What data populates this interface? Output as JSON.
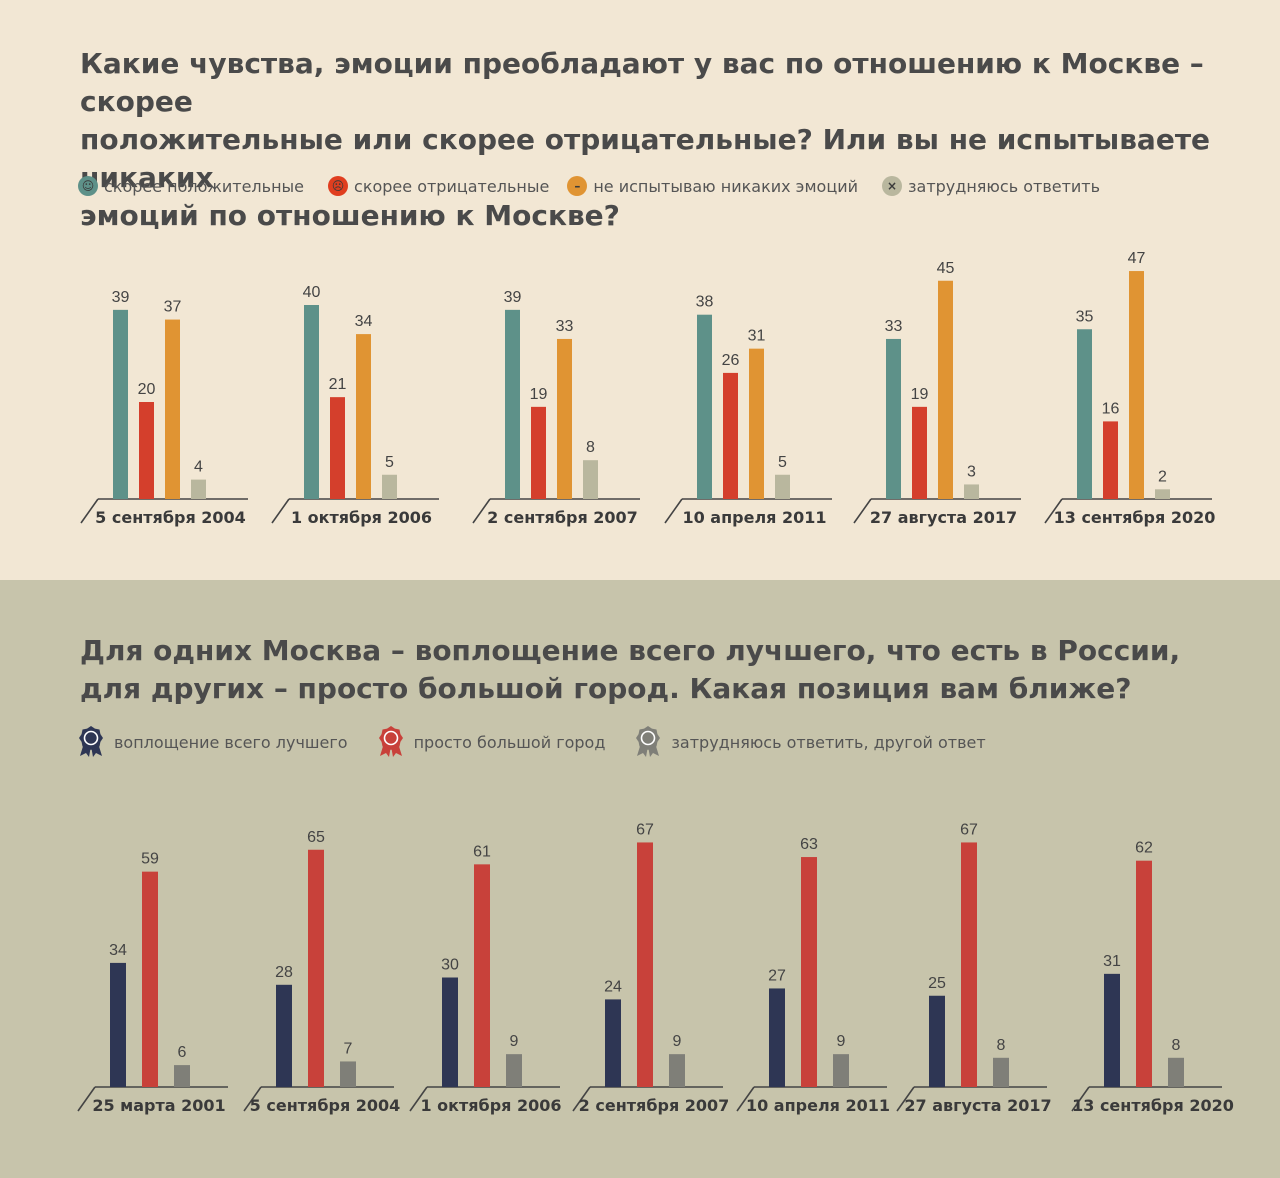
{
  "section1": {
    "title": "Какие чувства, эмоции преобладают у вас по отношению к Москве – скорее\nположительные или скорее отрицательные? Или вы не испытываете никаких\nэмоций по отношению к Москве?",
    "legend": [
      {
        "label": "скорее положительные",
        "icon": "smile-icon",
        "glyph": "☺",
        "color": "#5e9189"
      },
      {
        "label": "скорее отрицательные",
        "icon": "angry-face-icon",
        "glyph": "☹",
        "color": "#e03e1f"
      },
      {
        "label": "не испытываю никаких эмоций",
        "icon": "neutral-face-icon",
        "glyph": "–",
        "color": "#e09433"
      },
      {
        "label": "затрудняюсь ответить",
        "icon": "confused-face-icon",
        "glyph": "×",
        "color": "#b9b79e"
      }
    ]
  },
  "section2": {
    "title": "Для одних Москва – воплощение всего лучшего, что есть в России,\nдля других –  просто большой город. Какая позиция вам ближе?",
    "legend": [
      {
        "label": "воплощение всего лучшего",
        "icon": "rosette-icon",
        "color": "#2e3654"
      },
      {
        "label": "просто большой город",
        "icon": "rosette-icon",
        "color": "#c8413a"
      },
      {
        "label": "затрудняюсь ответить, другой ответ",
        "icon": "rosette-icon",
        "color": "#7f7f78"
      }
    ]
  },
  "chart_data": [
    {
      "type": "bar",
      "categories": [
        "5 сентября 2004",
        "1 октября 2006",
        "2 сентября 2007",
        "10 апреля 2011",
        "27 августа 2017",
        "13 сентября 2020"
      ],
      "series": [
        {
          "name": "скорее положительные",
          "values": [
            39,
            40,
            39,
            38,
            33,
            35
          ],
          "color": "#5e9189"
        },
        {
          "name": "скорее отрицательные",
          "values": [
            20,
            21,
            19,
            26,
            19,
            16
          ],
          "color": "#d43f2c"
        },
        {
          "name": "не испытываю никаких эмоций",
          "values": [
            37,
            34,
            33,
            31,
            45,
            47
          ],
          "color": "#e09433"
        },
        {
          "name": "затрудняюсь ответить",
          "values": [
            4,
            5,
            8,
            5,
            3,
            2
          ],
          "color": "#b9b79e"
        }
      ]
    },
    {
      "type": "bar",
      "categories": [
        "25 марта 2001",
        "5 сентября 2004",
        "1 октября 2006",
        "2 сентября 2007",
        "10 апреля 2011",
        "27 августа 2017",
        "13 сентября 2020"
      ],
      "series": [
        {
          "name": "воплощение всего лучшего",
          "values": [
            34,
            28,
            30,
            24,
            27,
            25,
            31
          ],
          "color": "#2e3654"
        },
        {
          "name": "просто большой город",
          "values": [
            59,
            65,
            61,
            67,
            63,
            67,
            62
          ],
          "color": "#c8413a"
        },
        {
          "name": "затрудняюсь ответить, другой ответ",
          "values": [
            6,
            7,
            9,
            9,
            9,
            8,
            8
          ],
          "color": "#7f7f78"
        }
      ]
    }
  ]
}
